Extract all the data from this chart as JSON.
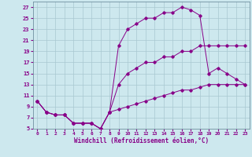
{
  "background_color": "#cde8ee",
  "line_color": "#880088",
  "grid_color": "#a8c8d0",
  "xlabel": "Windchill (Refroidissement éolien,°C)",
  "xlim": [
    -0.5,
    23.5
  ],
  "ylim": [
    5,
    28
  ],
  "yticks": [
    5,
    7,
    9,
    11,
    13,
    15,
    17,
    19,
    21,
    23,
    25,
    27
  ],
  "xticks": [
    0,
    1,
    2,
    3,
    4,
    5,
    6,
    7,
    8,
    9,
    10,
    11,
    12,
    13,
    14,
    15,
    16,
    17,
    18,
    19,
    20,
    21,
    22,
    23
  ],
  "series": [
    {
      "x": [
        0,
        1,
        2,
        3,
        4,
        5,
        6,
        7,
        8,
        9,
        10,
        11,
        12,
        13,
        14,
        15,
        16,
        17,
        18,
        19,
        20,
        21,
        22,
        23
      ],
      "y": [
        10,
        8,
        7.5,
        7.5,
        6,
        6,
        6,
        5,
        8,
        20,
        23,
        24,
        25,
        25,
        26,
        26,
        27,
        26.5,
        25.5,
        15,
        16,
        15,
        14,
        13
      ]
    },
    {
      "x": [
        0,
        1,
        2,
        3,
        4,
        5,
        6,
        7,
        8,
        9,
        10,
        11,
        12,
        13,
        14,
        15,
        16,
        17,
        18,
        19,
        20,
        21,
        22,
        23
      ],
      "y": [
        10,
        8,
        7.5,
        7.5,
        6,
        6,
        6,
        5,
        8,
        13,
        15,
        16,
        17,
        17,
        18,
        18,
        19,
        19,
        20,
        20,
        20,
        20,
        20,
        20
      ]
    },
    {
      "x": [
        0,
        1,
        2,
        3,
        4,
        5,
        6,
        7,
        8,
        9,
        10,
        11,
        12,
        13,
        14,
        15,
        16,
        17,
        18,
        19,
        20,
        21,
        22,
        23
      ],
      "y": [
        10,
        8,
        7.5,
        7.5,
        6,
        6,
        6,
        5,
        8,
        8.5,
        9,
        9.5,
        10,
        10.5,
        11,
        11.5,
        12,
        12,
        12.5,
        13,
        13,
        13,
        13,
        13
      ]
    }
  ]
}
